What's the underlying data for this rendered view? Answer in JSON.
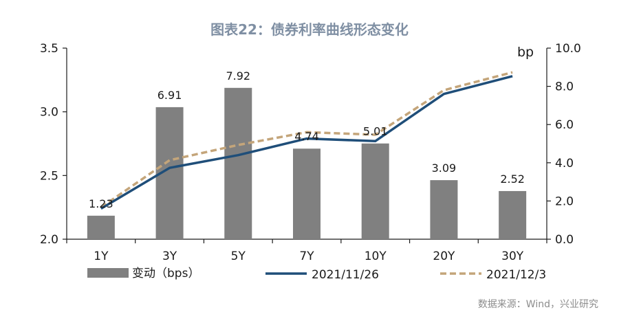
{
  "chart_data": {
    "type": "bar+line",
    "title": "图表22：债券利率曲线形态变化",
    "categories": [
      "1Y",
      "3Y",
      "5Y",
      "7Y",
      "10Y",
      "20Y",
      "30Y"
    ],
    "left_axis": {
      "ylim": [
        2.0,
        3.5
      ],
      "ticks": [
        "2.0",
        "2.5",
        "3.0",
        "3.5"
      ]
    },
    "right_axis": {
      "unit": "bp",
      "ylim": [
        0,
        10
      ],
      "ticks": [
        "0.0",
        "2.0",
        "4.0",
        "6.0",
        "8.0",
        "10.0"
      ]
    },
    "bars": {
      "name": "变动（bps）",
      "axis": "right",
      "color": "#808080",
      "values": [
        1.23,
        6.91,
        7.92,
        4.74,
        5.01,
        3.09,
        2.52
      ],
      "labels": [
        "1.23",
        "6.91",
        "7.92",
        "4.74",
        "5.01",
        "3.09",
        "2.52"
      ]
    },
    "series": [
      {
        "name": "2021/11/26",
        "axis": "left",
        "style": "solid",
        "color": "#1f4e79",
        "values": [
          2.24,
          2.56,
          2.66,
          2.79,
          2.77,
          3.14,
          3.28
        ]
      },
      {
        "name": "2021/12/3",
        "axis": "left",
        "style": "dashed",
        "color": "#c4a57a",
        "values": [
          2.25,
          2.62,
          2.74,
          2.84,
          2.82,
          3.17,
          3.31
        ]
      }
    ],
    "legend_position": "bottom"
  },
  "source": "数据来源：Wind，兴业研究"
}
